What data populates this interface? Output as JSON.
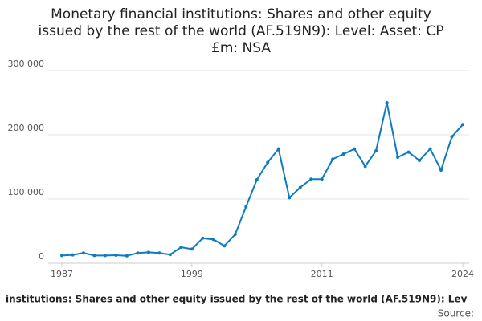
{
  "chart_data": {
    "type": "line",
    "title": [
      "Monetary financial institutions: Shares and other equity",
      "issued by the rest of the world (AF.519N9): Level: Asset: CP",
      "£m: NSA"
    ],
    "caption": "institutions: Shares and other equity issued by the rest of the world (AF.519N9): Lev",
    "source": "Source:",
    "x": [
      1987,
      1988,
      1989,
      1990,
      1991,
      1992,
      1993,
      1994,
      1995,
      1996,
      1997,
      1998,
      1999,
      2000,
      2001,
      2002,
      2003,
      2004,
      2005,
      2006,
      2007,
      2008,
      2009,
      2010,
      2011,
      2012,
      2013,
      2014,
      2015,
      2016,
      2017,
      2018,
      2019,
      2020,
      2021,
      2022,
      2023,
      2024
    ],
    "series": [
      {
        "name": "AF.519N9",
        "color": "#0f7bbf",
        "values": [
          12000,
          13000,
          16000,
          12000,
          12000,
          12500,
          11500,
          16000,
          17000,
          16000,
          13500,
          25000,
          22000,
          39000,
          37000,
          27000,
          45000,
          88000,
          130000,
          157000,
          178000,
          102000,
          118000,
          131000,
          131000,
          162000,
          170000,
          178000,
          151000,
          175000,
          250000,
          165000,
          173000,
          160000,
          178000,
          145000,
          197000,
          216000
        ]
      }
    ],
    "xlim": [
      1987,
      2024
    ],
    "xticks": [
      1987,
      1999,
      2011,
      2024
    ],
    "ylim": [
      0,
      300000
    ],
    "yticks": [
      0,
      {
        "value": 100000,
        "label": "100 000"
      },
      {
        "value": 200000,
        "label": "200 000"
      },
      {
        "value": 300000,
        "label": "300 000"
      }
    ],
    "grid": true
  }
}
